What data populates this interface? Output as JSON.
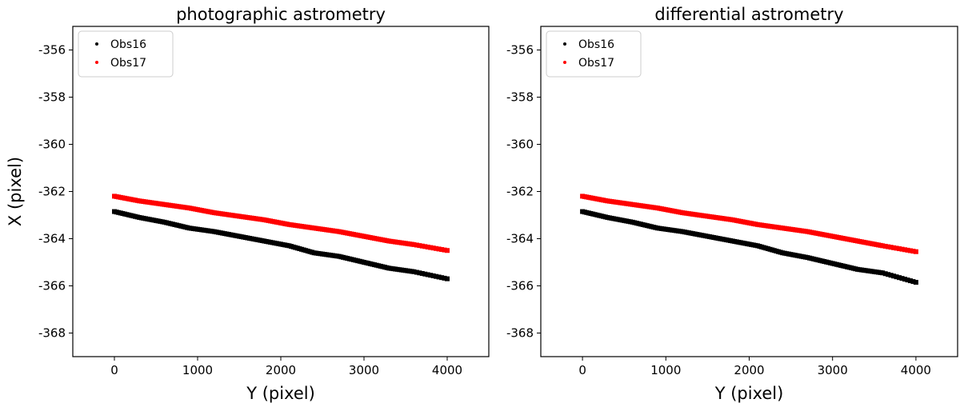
{
  "chart_data": [
    {
      "type": "scatter",
      "title": "photographic astrometry",
      "xlabel": "Y (pixel)",
      "ylabel": "X (pixel)",
      "xlim": [
        -500,
        4500
      ],
      "ylim": [
        -369,
        -355
      ],
      "xticks": [
        0,
        1000,
        2000,
        3000,
        4000
      ],
      "yticks": [
        -356,
        -358,
        -360,
        -362,
        -364,
        -366,
        -368
      ],
      "legend": "top-left",
      "series": [
        {
          "name": "Obs16",
          "color": "#000000",
          "points": [
            [
              0,
              -362.85
            ],
            [
              300,
              -363.1
            ],
            [
              600,
              -363.3
            ],
            [
              900,
              -363.55
            ],
            [
              1200,
              -363.7
            ],
            [
              1500,
              -363.9
            ],
            [
              1800,
              -364.1
            ],
            [
              2100,
              -364.3
            ],
            [
              2400,
              -364.6
            ],
            [
              2700,
              -364.75
            ],
            [
              3000,
              -365.0
            ],
            [
              3300,
              -365.25
            ],
            [
              3600,
              -365.4
            ],
            [
              4000,
              -365.7
            ]
          ]
        },
        {
          "name": "Obs17",
          "color": "#ff0000",
          "points": [
            [
              0,
              -362.2
            ],
            [
              300,
              -362.4
            ],
            [
              600,
              -362.55
            ],
            [
              900,
              -362.7
            ],
            [
              1200,
              -362.9
            ],
            [
              1500,
              -363.05
            ],
            [
              1800,
              -363.2
            ],
            [
              2100,
              -363.4
            ],
            [
              2400,
              -363.55
            ],
            [
              2700,
              -363.7
            ],
            [
              3000,
              -363.9
            ],
            [
              3300,
              -364.1
            ],
            [
              3600,
              -364.25
            ],
            [
              4000,
              -364.5
            ]
          ]
        }
      ]
    },
    {
      "type": "scatter",
      "title": "differential astrometry",
      "xlabel": "Y (pixel)",
      "ylabel": "",
      "xlim": [
        -500,
        4500
      ],
      "ylim": [
        -369,
        -355
      ],
      "xticks": [
        0,
        1000,
        2000,
        3000,
        4000
      ],
      "yticks": [
        -356,
        -358,
        -360,
        -362,
        -364,
        -366,
        -368
      ],
      "legend": "top-left",
      "series": [
        {
          "name": "Obs16",
          "color": "#000000",
          "points": [
            [
              0,
              -362.85
            ],
            [
              300,
              -363.1
            ],
            [
              600,
              -363.3
            ],
            [
              900,
              -363.55
            ],
            [
              1200,
              -363.7
            ],
            [
              1500,
              -363.9
            ],
            [
              1800,
              -364.1
            ],
            [
              2100,
              -364.3
            ],
            [
              2400,
              -364.6
            ],
            [
              2700,
              -364.8
            ],
            [
              3000,
              -365.05
            ],
            [
              3300,
              -365.3
            ],
            [
              3600,
              -365.45
            ],
            [
              4000,
              -365.85
            ]
          ]
        },
        {
          "name": "Obs17",
          "color": "#ff0000",
          "points": [
            [
              0,
              -362.2
            ],
            [
              300,
              -362.4
            ],
            [
              600,
              -362.55
            ],
            [
              900,
              -362.7
            ],
            [
              1200,
              -362.9
            ],
            [
              1500,
              -363.05
            ],
            [
              1800,
              -363.2
            ],
            [
              2100,
              -363.4
            ],
            [
              2400,
              -363.55
            ],
            [
              2700,
              -363.7
            ],
            [
              3000,
              -363.9
            ],
            [
              3300,
              -364.1
            ],
            [
              3600,
              -364.3
            ],
            [
              4000,
              -364.55
            ]
          ]
        }
      ]
    }
  ]
}
